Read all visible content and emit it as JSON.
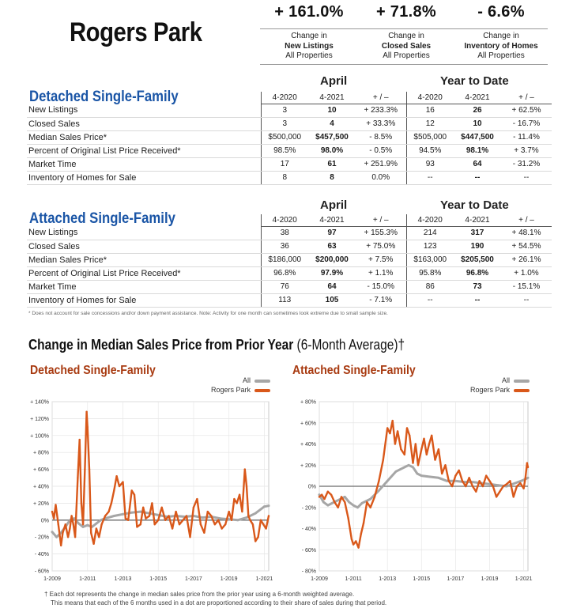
{
  "title": "Rogers Park",
  "summary": [
    {
      "value": "+ 161.0%",
      "line1": "Change in",
      "line2": "New Listings",
      "line3": "All Properties"
    },
    {
      "value": "+ 71.8%",
      "line1": "Change in",
      "line2": "Closed Sales",
      "line3": "All Properties"
    },
    {
      "value": "- 6.6%",
      "line1": "Change in",
      "line2": "Inventory of Homes",
      "line3": "All Properties"
    }
  ],
  "period_headers": {
    "april": "April",
    "ytd": "Year to Date"
  },
  "col_headers": [
    "4-2020",
    "4-2021",
    "+ / –",
    "4-2020",
    "4-2021",
    "+ / –"
  ],
  "detached": {
    "title": "Detached Single-Family",
    "rows": [
      {
        "label": "New Listings",
        "v": [
          "3",
          "10",
          "+ 233.3%",
          "16",
          "26",
          "+ 62.5%"
        ]
      },
      {
        "label": "Closed Sales",
        "v": [
          "3",
          "4",
          "+ 33.3%",
          "12",
          "10",
          "- 16.7%"
        ]
      },
      {
        "label": "Median Sales Price*",
        "v": [
          "$500,000",
          "$457,500",
          "- 8.5%",
          "$505,000",
          "$447,500",
          "- 11.4%"
        ]
      },
      {
        "label": "Percent of Original List Price Received*",
        "v": [
          "98.5%",
          "98.0%",
          "- 0.5%",
          "94.5%",
          "98.1%",
          "+ 3.7%"
        ]
      },
      {
        "label": "Market Time",
        "v": [
          "17",
          "61",
          "+ 251.9%",
          "93",
          "64",
          "- 31.2%"
        ]
      },
      {
        "label": "Inventory of Homes for Sale",
        "v": [
          "8",
          "8",
          "0.0%",
          "--",
          "--",
          "--"
        ]
      }
    ]
  },
  "attached": {
    "title": "Attached Single-Family",
    "rows": [
      {
        "label": "New Listings",
        "v": [
          "38",
          "97",
          "+ 155.3%",
          "214",
          "317",
          "+ 48.1%"
        ]
      },
      {
        "label": "Closed Sales",
        "v": [
          "36",
          "63",
          "+ 75.0%",
          "123",
          "190",
          "+ 54.5%"
        ]
      },
      {
        "label": "Median Sales Price*",
        "v": [
          "$186,000",
          "$200,000",
          "+ 7.5%",
          "$163,000",
          "$205,500",
          "+ 26.1%"
        ]
      },
      {
        "label": "Percent of Original List Price Received*",
        "v": [
          "96.8%",
          "97.9%",
          "+ 1.1%",
          "95.8%",
          "96.8%",
          "+ 1.0%"
        ]
      },
      {
        "label": "Market Time",
        "v": [
          "76",
          "64",
          "- 15.0%",
          "86",
          "73",
          "- 15.1%"
        ]
      },
      {
        "label": "Inventory of Homes for Sale",
        "v": [
          "113",
          "105",
          "- 7.1%",
          "--",
          "--",
          "--"
        ]
      }
    ]
  },
  "table_footnote": "* Does not account for sale concessions and/or down payment assistance. Note: Activity for one month can sometimes look extreme due to small sample size.",
  "change_title_main": "Change in Median Sales Price from Prior Year ",
  "change_title_sub": "(6-Month Average)†",
  "colors": {
    "all": "#a6a6a6",
    "local": "#d9581a",
    "title_blue": "#1a55a6",
    "chart_title": "#a83a10"
  },
  "chart_data": [
    {
      "type": "line",
      "title": "Detached Single-Family",
      "legend": [
        "All",
        "Rogers Park"
      ],
      "legend_position": "top-right",
      "grid": true,
      "x_ticks": [
        "1-2009",
        "1-2011",
        "1-2013",
        "1-2015",
        "1-2017",
        "1-2019",
        "1-2021"
      ],
      "y_ticks": [
        "+ 140%",
        "+ 120%",
        "+ 100%",
        "+ 80%",
        "+ 60%",
        "+ 40%",
        "+ 20%",
        "0%",
        "- 20%",
        "- 40%",
        "- 60%"
      ],
      "ylim": [
        -60,
        140
      ],
      "xlim": [
        2009.0,
        2021.25
      ],
      "series": [
        {
          "name": "All",
          "x": [
            2009.0,
            2009.25,
            2009.5,
            2009.75,
            2010.0,
            2010.25,
            2010.5,
            2010.75,
            2011.0,
            2011.25,
            2011.5,
            2011.75,
            2012.0,
            2012.5,
            2013.0,
            2013.5,
            2014.0,
            2014.5,
            2015.0,
            2015.5,
            2016.0,
            2016.5,
            2017.0,
            2017.5,
            2018.0,
            2018.5,
            2019.0,
            2019.5,
            2020.0,
            2020.5,
            2021.0,
            2021.25
          ],
          "y": [
            -14,
            -20,
            -15,
            -8,
            0,
            2,
            -4,
            -8,
            -6,
            -8,
            -4,
            0,
            2,
            5,
            7,
            9,
            10,
            8,
            6,
            4,
            5,
            4,
            5,
            3,
            4,
            2,
            1,
            0,
            3,
            8,
            16,
            17
          ]
        },
        {
          "name": "Rogers Park",
          "x": [
            2009.0,
            2009.1,
            2009.2,
            2009.35,
            2009.5,
            2009.6,
            2009.75,
            2009.9,
            2010.0,
            2010.1,
            2010.2,
            2010.3,
            2010.45,
            2010.55,
            2010.65,
            2010.75,
            2010.85,
            2010.95,
            2011.0,
            2011.1,
            2011.2,
            2011.35,
            2011.5,
            2011.65,
            2011.8,
            2012.0,
            2012.2,
            2012.35,
            2012.5,
            2012.65,
            2012.8,
            2013.0,
            2013.15,
            2013.3,
            2013.5,
            2013.65,
            2013.8,
            2014.0,
            2014.15,
            2014.3,
            2014.5,
            2014.65,
            2014.8,
            2015.0,
            2015.2,
            2015.4,
            2015.6,
            2015.8,
            2016.0,
            2016.2,
            2016.4,
            2016.6,
            2016.8,
            2017.0,
            2017.2,
            2017.4,
            2017.6,
            2017.8,
            2018.0,
            2018.2,
            2018.4,
            2018.6,
            2018.8,
            2019.0,
            2019.15,
            2019.3,
            2019.45,
            2019.6,
            2019.75,
            2019.9,
            2020.0,
            2020.1,
            2020.2,
            2020.35,
            2020.5,
            2020.65,
            2020.8,
            2020.95,
            2021.1,
            2021.25
          ],
          "y": [
            10,
            2,
            18,
            -5,
            -30,
            -15,
            -5,
            -20,
            -10,
            5,
            -5,
            -20,
            50,
            95,
            20,
            -5,
            60,
            128,
            110,
            60,
            -15,
            -28,
            -10,
            -20,
            -5,
            5,
            10,
            20,
            35,
            52,
            40,
            45,
            2,
            0,
            35,
            30,
            -8,
            -5,
            15,
            2,
            5,
            20,
            -5,
            0,
            15,
            0,
            5,
            -10,
            10,
            -5,
            0,
            5,
            -20,
            15,
            25,
            -5,
            -15,
            10,
            5,
            -5,
            0,
            -10,
            -5,
            10,
            0,
            25,
            20,
            30,
            10,
            60,
            40,
            5,
            0,
            -5,
            -25,
            -20,
            0,
            -5,
            -10,
            5
          ]
        }
      ]
    },
    {
      "type": "line",
      "title": "Attached Single-Family",
      "legend": [
        "All",
        "Rogers Park"
      ],
      "legend_position": "top-right",
      "grid": true,
      "x_ticks": [
        "1-2009",
        "1-2011",
        "1-2013",
        "1-2015",
        "1-2017",
        "1-2019",
        "1-2021"
      ],
      "y_ticks": [
        "+ 80%",
        "+ 60%",
        "+ 40%",
        "+ 20%",
        "0%",
        "- 20%",
        "- 40%",
        "- 60%",
        "- 80%"
      ],
      "ylim": [
        -80,
        80
      ],
      "xlim": [
        2009.0,
        2021.25
      ],
      "series": [
        {
          "name": "All",
          "x": [
            2009.0,
            2009.25,
            2009.5,
            2009.75,
            2010.0,
            2010.25,
            2010.5,
            2010.75,
            2011.0,
            2011.25,
            2011.5,
            2012.0,
            2012.5,
            2013.0,
            2013.5,
            2014.0,
            2014.25,
            2014.5,
            2014.75,
            2015.0,
            2015.5,
            2016.0,
            2016.5,
            2017.0,
            2017.5,
            2018.0,
            2018.5,
            2019.0,
            2019.5,
            2020.0,
            2020.5,
            2021.0,
            2021.25
          ],
          "y": [
            -8,
            -15,
            -18,
            -16,
            -14,
            -12,
            -10,
            -15,
            -18,
            -20,
            -16,
            -12,
            -4,
            5,
            14,
            18,
            20,
            18,
            12,
            10,
            9,
            8,
            5,
            5,
            4,
            4,
            3,
            2,
            1,
            0,
            3,
            6,
            8
          ]
        },
        {
          "name": "Rogers Park",
          "x": [
            2009.0,
            2009.15,
            2009.3,
            2009.5,
            2009.7,
            2009.9,
            2010.1,
            2010.3,
            2010.5,
            2010.7,
            2010.9,
            2011.0,
            2011.15,
            2011.3,
            2011.45,
            2011.6,
            2011.8,
            2012.0,
            2012.25,
            2012.5,
            2012.75,
            2013.0,
            2013.15,
            2013.3,
            2013.45,
            2013.6,
            2013.8,
            2014.0,
            2014.15,
            2014.3,
            2014.5,
            2014.65,
            2014.8,
            2015.0,
            2015.15,
            2015.3,
            2015.45,
            2015.6,
            2015.8,
            2016.0,
            2016.2,
            2016.4,
            2016.6,
            2016.8,
            2017.0,
            2017.2,
            2017.4,
            2017.6,
            2017.8,
            2018.0,
            2018.2,
            2018.4,
            2018.6,
            2018.8,
            2019.0,
            2019.2,
            2019.4,
            2019.6,
            2019.8,
            2020.0,
            2020.2,
            2020.4,
            2020.6,
            2020.8,
            2021.0,
            2021.1,
            2021.2,
            2021.25
          ],
          "y": [
            -10,
            -8,
            -12,
            -5,
            -8,
            -15,
            -20,
            -10,
            -15,
            -30,
            -50,
            -55,
            -52,
            -58,
            -45,
            -35,
            -15,
            -20,
            -10,
            5,
            25,
            55,
            50,
            62,
            40,
            52,
            35,
            30,
            55,
            48,
            22,
            40,
            20,
            35,
            45,
            30,
            40,
            48,
            25,
            35,
            12,
            20,
            5,
            0,
            10,
            15,
            5,
            0,
            8,
            0,
            -5,
            5,
            0,
            10,
            5,
            0,
            -10,
            -5,
            0,
            2,
            5,
            -10,
            0,
            3,
            -2,
            8,
            22,
            18
          ]
        }
      ]
    }
  ],
  "bottom_note": [
    "† Each dot represents the change in median sales price from the prior year using a 6-month weighted average.",
    "This means that each of the 6 months used in a dot are proportioned according to their share of sales during that period."
  ]
}
